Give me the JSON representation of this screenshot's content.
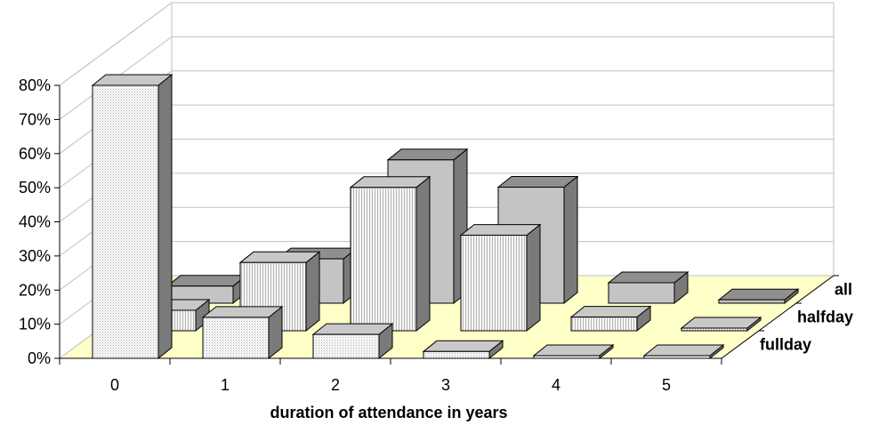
{
  "chart_data": {
    "type": "bar",
    "variant": "3d-grouped-depth",
    "title": "",
    "xlabel": "duration of attendance in years",
    "ylabel": "",
    "categories": [
      "0",
      "1",
      "2",
      "3",
      "4",
      "5"
    ],
    "y_ticks": [
      "0%",
      "10%",
      "20%",
      "30%",
      "40%",
      "50%",
      "60%",
      "70%",
      "80%"
    ],
    "ylim": [
      0,
      80
    ],
    "grid": true,
    "legend": "none (series named along depth axis at right)",
    "series": [
      {
        "name": "fullday",
        "values": [
          80,
          12,
          7,
          2,
          0.5,
          0.5
        ],
        "style": "dotted"
      },
      {
        "name": "halfday",
        "values": [
          6,
          20,
          42,
          28,
          4,
          0.5
        ],
        "style": "vertical-hatch"
      },
      {
        "name": "all",
        "values": [
          5,
          13,
          42,
          34,
          6,
          1
        ],
        "style": "gray"
      }
    ]
  },
  "colors": {
    "floor": "#ffffc8",
    "grid": "#c0c0c0",
    "bar_front": "#f4f4f4",
    "bar_front_back_series": "#c4c4c4",
    "bar_top_back_series": "#8f8f8f",
    "bar_side": "#7a7a7a",
    "outline": "#000000"
  }
}
